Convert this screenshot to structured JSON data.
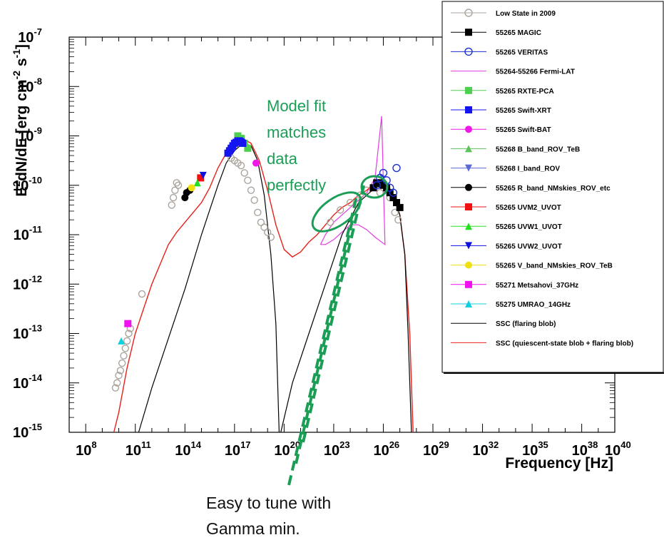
{
  "chart_data": {
    "type": "scatter",
    "xscale": "log",
    "yscale": "log",
    "xlim_exponent": [
      7,
      40
    ],
    "ylim_exponent": [
      -15,
      -7
    ],
    "x_ticks": [
      {
        "base": "10",
        "exp": "8",
        "value": 8
      },
      {
        "base": "10",
        "exp": "11",
        "value": 11
      },
      {
        "base": "10",
        "exp": "14",
        "value": 14
      },
      {
        "base": "10",
        "exp": "17",
        "value": 17
      },
      {
        "base": "10",
        "exp": "20",
        "value": 20
      },
      {
        "base": "10",
        "exp": "23",
        "value": 23
      },
      {
        "base": "10",
        "exp": "26",
        "value": 26
      },
      {
        "base": "10",
        "exp": "29",
        "value": 29
      },
      {
        "base": "10",
        "exp": "32",
        "value": 32
      },
      {
        "base": "10",
        "exp": "35",
        "value": 35
      },
      {
        "base": "10",
        "exp": "38",
        "value": 38
      },
      {
        "base": "10",
        "exp": "40",
        "value": 40
      }
    ],
    "y_ticks": [
      {
        "base": "10",
        "exp": "-7",
        "value": -7
      },
      {
        "base": "10",
        "exp": "-8",
        "value": -8
      },
      {
        "base": "10",
        "exp": "-9",
        "value": -9
      },
      {
        "base": "10",
        "exp": "-10",
        "value": -10
      },
      {
        "base": "10",
        "exp": "-11",
        "value": -11
      },
      {
        "base": "10",
        "exp": "-12",
        "value": -12
      },
      {
        "base": "10",
        "exp": "-13",
        "value": -13
      },
      {
        "base": "10",
        "exp": "-14",
        "value": -14
      },
      {
        "base": "10",
        "exp": "-15",
        "value": -15
      }
    ],
    "xlabel": "Frequency [Hz]",
    "ylabel_parts": [
      "E",
      "2",
      "dN/dE [erg cm",
      "-2",
      " s",
      "-1",
      "]"
    ],
    "legend_position": "top-right",
    "legend": [
      {
        "label": "Low State in 2009",
        "color": "#aaa49c",
        "marker": "circle-open"
      },
      {
        "label": "55265 MAGIC",
        "color": "#000000",
        "marker": "square"
      },
      {
        "label": "55265 VERITAS",
        "color": "#1c2fd0",
        "marker": "circle-open"
      },
      {
        "label": "55264-55266 Fermi-LAT",
        "color": "#e23ce2",
        "marker": "line"
      },
      {
        "label": "55265 RXTE-PCA",
        "color": "#4fcf4f",
        "marker": "square"
      },
      {
        "label": "55265 Swift-XRT",
        "color": "#1414f0",
        "marker": "square"
      },
      {
        "label": "55265 Swift-BAT",
        "color": "#f018e8",
        "marker": "circle"
      },
      {
        "label": "55268 B_band_ROV_TeB",
        "color": "#5ec25e",
        "marker": "triangle-up"
      },
      {
        "label": "55268 I_band_ROV",
        "color": "#5a6ad8",
        "marker": "triangle-down"
      },
      {
        "label": "55265 R_band_NMskies_ROV_etc",
        "color": "#000000",
        "marker": "circle"
      },
      {
        "label": "55265 UVM2_UVOT",
        "color": "#f01010",
        "marker": "square"
      },
      {
        "label": "55265 UVW1_UVOT",
        "color": "#20e020",
        "marker": "triangle-up"
      },
      {
        "label": "55265 UVW2_UVOT",
        "color": "#1010e0",
        "marker": "triangle-down"
      },
      {
        "label": "55265 V_band_NMskies_ROV_TeB",
        "color": "#f0e010",
        "marker": "circle"
      },
      {
        "label": "55271 Metsahovi_37GHz",
        "color": "#f010f0",
        "marker": "square"
      },
      {
        "label": "55275 UMRAO_14GHz",
        "color": "#10d0e0",
        "marker": "triangle-up"
      },
      {
        "label": "SSC (flaring blob)",
        "color": "#000000",
        "marker": "line"
      },
      {
        "label": "SSC (quiescent-state blob + flaring blob)",
        "color": "#e8201a",
        "marker": "line"
      }
    ],
    "series": {
      "ssc_total": {
        "name": "SSC (quiescent-state blob + flaring blob)",
        "color": "#e8201a",
        "points": [
          [
            9.7,
            -15.0
          ],
          [
            10.0,
            -14.6
          ],
          [
            10.5,
            -13.7
          ],
          [
            11.0,
            -13.0
          ],
          [
            11.5,
            -12.5
          ],
          [
            12.0,
            -12.0
          ],
          [
            12.5,
            -11.6
          ],
          [
            13.0,
            -11.2
          ],
          [
            13.5,
            -10.95
          ],
          [
            14.0,
            -10.75
          ],
          [
            14.5,
            -10.55
          ],
          [
            15.0,
            -10.35
          ],
          [
            15.5,
            -10.05
          ],
          [
            16.0,
            -9.65
          ],
          [
            16.5,
            -9.35
          ],
          [
            17.0,
            -9.15
          ],
          [
            17.5,
            -9.05
          ],
          [
            18.0,
            -9.15
          ],
          [
            18.5,
            -9.5
          ],
          [
            19.0,
            -10.1
          ],
          [
            19.5,
            -10.8
          ],
          [
            20.0,
            -11.3
          ],
          [
            20.5,
            -11.45
          ],
          [
            21.0,
            -11.35
          ],
          [
            21.5,
            -11.15
          ],
          [
            22.0,
            -11.0
          ],
          [
            22.5,
            -10.8
          ],
          [
            23.0,
            -10.6
          ],
          [
            23.5,
            -10.45
          ],
          [
            24.0,
            -10.35
          ],
          [
            24.5,
            -10.2
          ],
          [
            25.0,
            -10.1
          ],
          [
            25.5,
            -9.95
          ],
          [
            26.0,
            -9.95
          ],
          [
            26.5,
            -10.1
          ],
          [
            27.0,
            -10.6
          ],
          [
            27.3,
            -11.4
          ],
          [
            27.6,
            -13.0
          ],
          [
            27.8,
            -15.0
          ]
        ]
      },
      "ssc_flaring": {
        "name": "SSC (flaring blob)",
        "color": "#000000",
        "points": [
          [
            11.2,
            -15.0
          ],
          [
            12.0,
            -14.1
          ],
          [
            13.0,
            -13.1
          ],
          [
            14.0,
            -12.1
          ],
          [
            15.0,
            -11.0
          ],
          [
            15.5,
            -10.5
          ],
          [
            16.0,
            -10.0
          ],
          [
            16.5,
            -9.55
          ],
          [
            17.0,
            -9.3
          ],
          [
            17.5,
            -9.15
          ],
          [
            18.0,
            -9.2
          ],
          [
            18.4,
            -9.5
          ],
          [
            18.8,
            -10.2
          ],
          [
            19.2,
            -11.4
          ],
          [
            19.5,
            -12.8
          ],
          [
            19.7,
            -15.0
          ]
        ]
      },
      "ssc_flaring_ic": {
        "name": "",
        "color": "#000000",
        "points": [
          [
            19.8,
            -15.0
          ],
          [
            20.5,
            -14.0
          ],
          [
            21.5,
            -13.0
          ],
          [
            22.5,
            -12.0
          ],
          [
            23.5,
            -11.0
          ],
          [
            24.5,
            -10.35
          ],
          [
            25.0,
            -10.2
          ],
          [
            25.5,
            -10.05
          ],
          [
            26.0,
            -10.0
          ],
          [
            26.5,
            -10.15
          ],
          [
            27.0,
            -10.6
          ],
          [
            27.3,
            -11.4
          ],
          [
            27.5,
            -13.0
          ],
          [
            27.7,
            -15.0
          ]
        ]
      },
      "low_state_2009": {
        "name": "Low State in 2009",
        "color": "#aaa49c",
        "points": [
          [
            9.8,
            -14.1
          ],
          [
            9.9,
            -14.0
          ],
          [
            10.0,
            -13.85
          ],
          [
            10.1,
            -13.75
          ],
          [
            10.2,
            -13.6
          ],
          [
            10.3,
            -13.45
          ],
          [
            10.4,
            -13.3
          ],
          [
            10.5,
            -13.15
          ],
          [
            10.6,
            -13.0
          ],
          [
            10.7,
            -12.9
          ],
          [
            11.4,
            -12.2
          ],
          [
            13.2,
            -10.4
          ],
          [
            13.3,
            -10.25
          ],
          [
            13.4,
            -10.1
          ],
          [
            13.5,
            -9.95
          ],
          [
            13.6,
            -10.0
          ],
          [
            16.8,
            -9.45
          ],
          [
            17.0,
            -9.5
          ],
          [
            17.2,
            -9.55
          ],
          [
            17.4,
            -9.6
          ],
          [
            17.6,
            -9.75
          ],
          [
            17.8,
            -9.9
          ],
          [
            18.0,
            -10.1
          ],
          [
            18.2,
            -10.3
          ],
          [
            18.4,
            -10.55
          ],
          [
            18.6,
            -10.75
          ],
          [
            18.8,
            -10.85
          ],
          [
            19.0,
            -10.95
          ],
          [
            19.2,
            -11.05
          ],
          [
            22.8,
            -10.75
          ],
          [
            23.4,
            -10.5
          ],
          [
            24.0,
            -10.35
          ],
          [
            24.6,
            -10.2
          ],
          [
            25.0,
            -10.1
          ],
          [
            25.8,
            -10.15
          ],
          [
            26.4,
            -10.25
          ],
          [
            26.7,
            -10.55
          ],
          [
            26.9,
            -10.7
          ]
        ]
      },
      "fermi_lat": {
        "name": "55264-55266 Fermi-LAT",
        "color": "#e23ce2",
        "points": [
          [
            22.2,
            -11.2
          ],
          [
            22.5,
            -11.0
          ],
          [
            23.0,
            -10.75
          ],
          [
            23.5,
            -10.6
          ],
          [
            24.0,
            -10.45
          ],
          [
            24.5,
            -10.3
          ],
          [
            25.0,
            -10.15
          ],
          [
            25.5,
            -9.85
          ],
          [
            25.9,
            -8.6
          ],
          [
            26.1,
            -11.2
          ],
          [
            25.5,
            -11.05
          ],
          [
            25.0,
            -10.9
          ],
          [
            24.5,
            -10.8
          ],
          [
            24.0,
            -10.8
          ],
          [
            23.5,
            -10.95
          ],
          [
            23.0,
            -11.1
          ],
          [
            22.5,
            -11.2
          ],
          [
            22.2,
            -11.2
          ]
        ]
      },
      "magic": {
        "name": "55265 MAGIC",
        "color": "#000000",
        "points": [
          [
            25.4,
            -10.05
          ],
          [
            25.6,
            -9.95
          ],
          [
            25.8,
            -9.95
          ],
          [
            26.0,
            -10.0
          ],
          [
            26.2,
            -10.05
          ],
          [
            26.4,
            -10.15
          ],
          [
            26.6,
            -10.25
          ],
          [
            26.8,
            -10.35
          ],
          [
            27.0,
            -10.45
          ]
        ]
      },
      "veritas": {
        "name": "55265 VERITAS",
        "color": "#1c2fd0",
        "points": [
          [
            25.6,
            -10.0
          ],
          [
            25.8,
            -9.85
          ],
          [
            26.0,
            -9.75
          ],
          [
            26.2,
            -9.9
          ],
          [
            26.4,
            -10.05
          ],
          [
            26.6,
            -10.15
          ],
          [
            26.8,
            -9.65
          ]
        ]
      },
      "rxte_pca": {
        "name": "55265 RXTE-PCA",
        "color": "#4fcf4f",
        "points": [
          [
            17.2,
            -9.0
          ],
          [
            17.4,
            -9.05
          ],
          [
            17.6,
            -9.15
          ],
          [
            17.8,
            -9.25
          ]
        ]
      },
      "swift_xrt": {
        "name": "55265 Swift-XRT",
        "color": "#1414f0",
        "points": [
          [
            16.6,
            -9.35
          ],
          [
            16.7,
            -9.3
          ],
          [
            16.8,
            -9.25
          ],
          [
            16.9,
            -9.2
          ],
          [
            17.0,
            -9.15
          ],
          [
            17.1,
            -9.13
          ],
          [
            17.2,
            -9.1
          ],
          [
            17.3,
            -9.1
          ],
          [
            17.4,
            -9.12
          ],
          [
            17.5,
            -9.15
          ]
        ]
      },
      "swift_bat": {
        "name": "55265 Swift-BAT",
        "color": "#f018e8",
        "points": [
          [
            18.3,
            -9.55
          ]
        ]
      },
      "optical_uv": {
        "name": "55265 R_band_NMskies_ROV_etc",
        "color": "#000000",
        "points": [
          [
            14.0,
            -10.25
          ],
          [
            14.1,
            -10.15
          ],
          [
            14.3,
            -10.1
          ]
        ]
      },
      "uvm2": {
        "name": "55265 UVM2_UVOT",
        "color": "#f01010",
        "points": [
          [
            14.95,
            -9.85
          ]
        ]
      },
      "uvw1": {
        "name": "55265 UVW1_UVOT",
        "color": "#20e020",
        "points": [
          [
            14.75,
            -9.95
          ]
        ]
      },
      "uvw2": {
        "name": "55265 UVW2_UVOT",
        "color": "#1010e0",
        "points": [
          [
            15.1,
            -9.8
          ]
        ]
      },
      "v_band": {
        "name": "55265 V_band_NMskies_ROV_TeB",
        "color": "#f0e010",
        "points": [
          [
            14.4,
            -10.05
          ]
        ]
      },
      "metsahovi": {
        "name": "55271 Metsahovi_37GHz",
        "color": "#f010f0",
        "points": [
          [
            10.55,
            -12.8
          ]
        ]
      },
      "umrao": {
        "name": "55275 UMRAO_14GHz",
        "color": "#10d0e0",
        "points": [
          [
            10.15,
            -13.15
          ]
        ]
      }
    },
    "annotations": {
      "model_fit": [
        "Model fit",
        "matches",
        "data",
        "perfectly"
      ],
      "gamma_min": [
        "Easy to tune with",
        "Gamma min."
      ]
    }
  }
}
